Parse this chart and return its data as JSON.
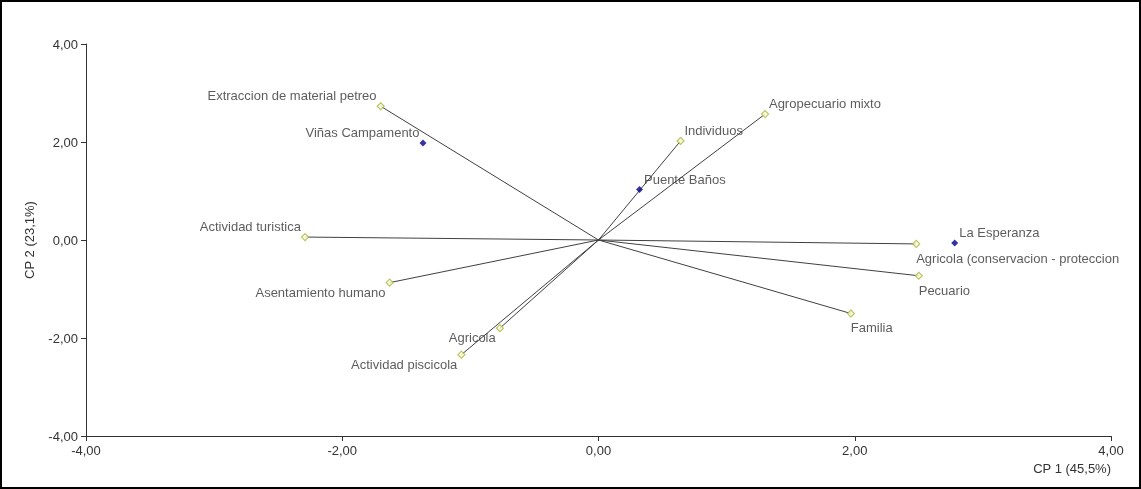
{
  "chart_data": {
    "type": "scatter",
    "xlabel": "CP 1 (45,5%)",
    "ylabel": "CP 2 (23,1%)",
    "xlim": [
      -4,
      4
    ],
    "ylim": [
      -4,
      4
    ],
    "xticks": [
      {
        "value": -4,
        "label": "-4,00"
      },
      {
        "value": -2,
        "label": "-2,00"
      },
      {
        "value": 0,
        "label": "0,00"
      },
      {
        "value": 2,
        "label": "2,00"
      },
      {
        "value": 4,
        "label": "4,00"
      }
    ],
    "yticks": [
      {
        "value": -4,
        "label": "-4,00"
      },
      {
        "value": -2,
        "label": "-2,00"
      },
      {
        "value": 0,
        "label": "0,00"
      },
      {
        "value": 2,
        "label": "2,00"
      },
      {
        "value": 4,
        "label": "4,00"
      }
    ],
    "grid": false,
    "series": [
      {
        "type": "line",
        "marker": "none",
        "color": "#404040",
        "x": [
          0,
          -1.7,
          null,
          0,
          -2.29,
          null,
          0,
          -1.63,
          null,
          0,
          -0.77,
          null,
          0,
          -1.07,
          null,
          0,
          0.64,
          null,
          0,
          1.3,
          null,
          0,
          2.48,
          null,
          0,
          2.5,
          null,
          0,
          1.97
        ],
        "values": [
          0,
          2.73,
          null,
          0,
          0.06,
          null,
          0,
          -0.87,
          null,
          0,
          -1.8,
          null,
          0,
          -2.34,
          null,
          0,
          2.02,
          null,
          0,
          2.57,
          null,
          0,
          -0.08,
          null,
          0,
          -0.73,
          null,
          0,
          -1.5
        ]
      },
      {
        "marker": "diamond",
        "color": "#a8b83a",
        "x": [
          -1.7,
          -2.29,
          -1.63,
          -0.77,
          -1.07,
          0.64,
          1.3,
          2.48,
          2.5,
          1.97
        ],
        "values": [
          2.73,
          0.06,
          -0.87,
          -1.8,
          -2.34,
          2.02,
          2.57,
          -0.08,
          -0.73,
          -1.5
        ],
        "value_labels": [
          "Extraccion de material petreo",
          "Actividad turistica",
          "Asentamiento humano",
          "Agricola",
          "Actividad piscicola",
          "Individuos",
          "Agropecuario mixto",
          "Agricola (conservacion - proteccion",
          "Pecuario",
          "Familia"
        ]
      },
      {
        "marker": "diamond",
        "color": "#00008b",
        "x": [
          -1.37,
          0.32,
          2.78
        ],
        "values": [
          1.98,
          1.03,
          -0.06
        ],
        "value_labels": [
          "Viñas Campamento",
          "Puente Baños",
          "La Esperanza"
        ]
      }
    ]
  }
}
